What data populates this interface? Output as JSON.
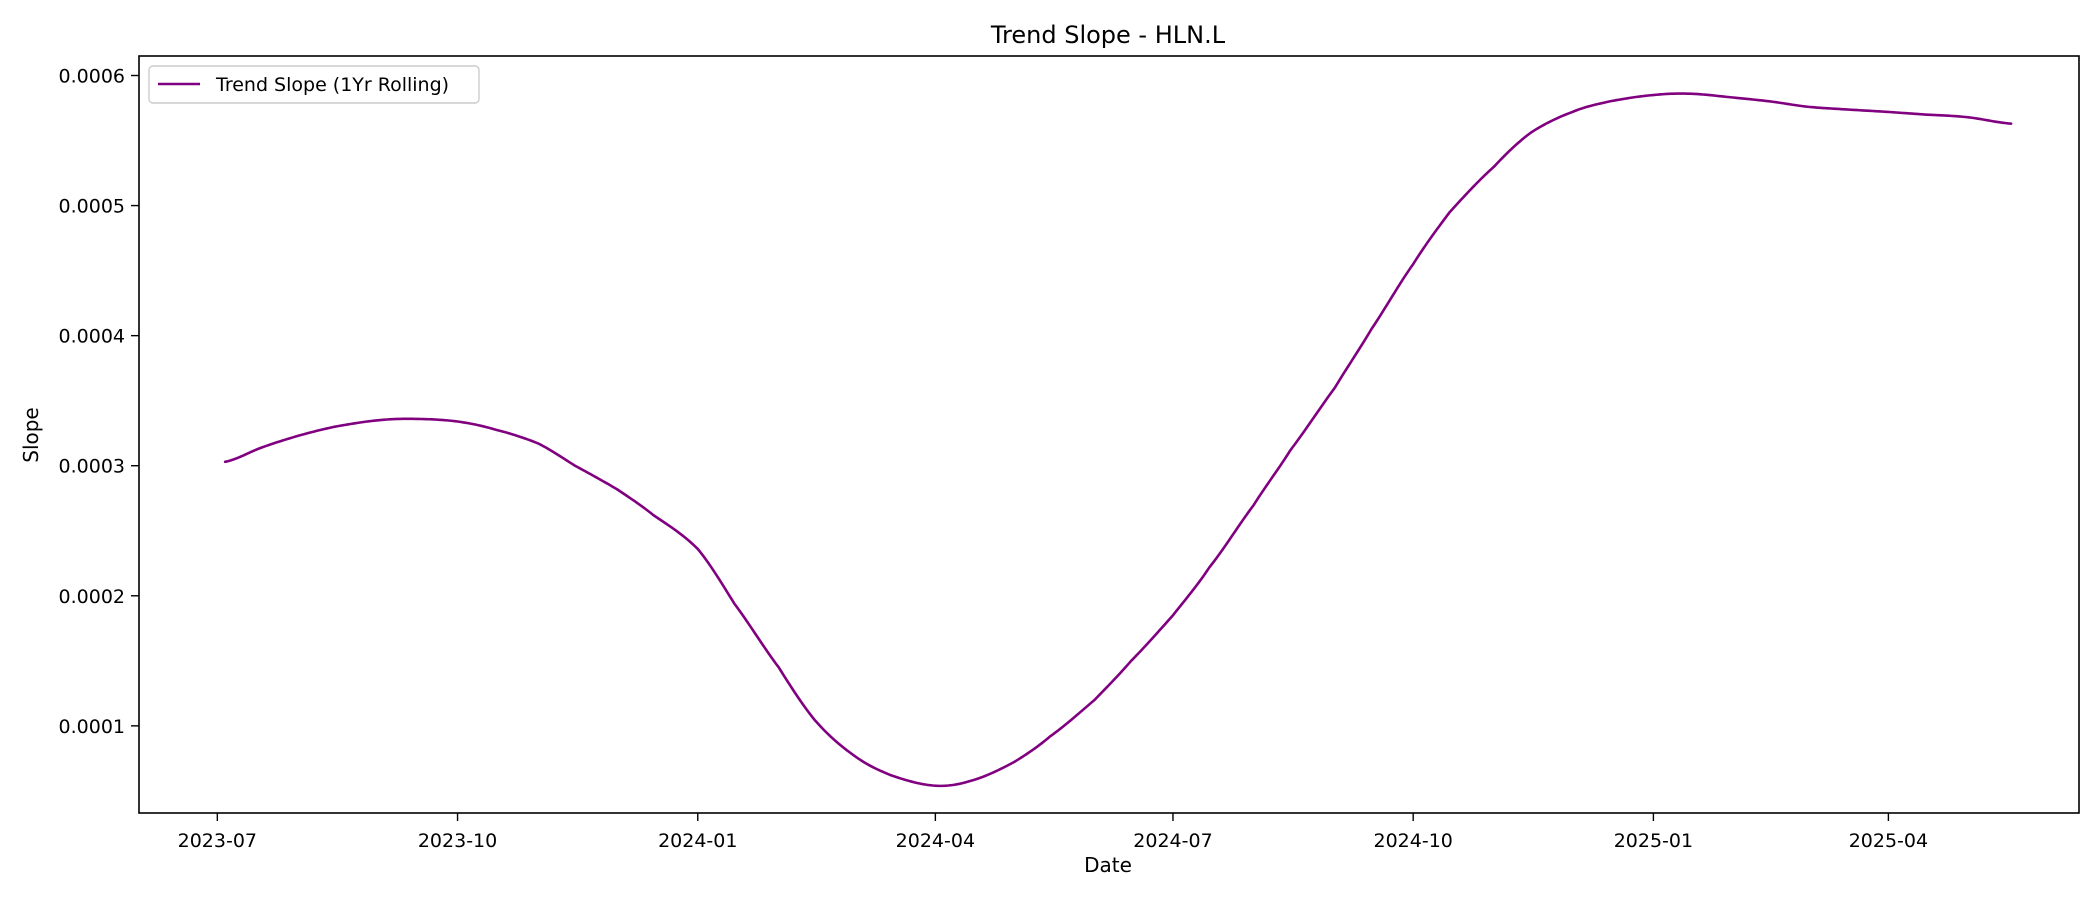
{
  "chart_data": {
    "type": "line",
    "title": "Trend Slope - HLN.L",
    "xlabel": "Date",
    "ylabel": "Slope",
    "x_ticks": [
      "2023-07",
      "2023-10",
      "2024-01",
      "2024-04",
      "2024-07",
      "2024-10",
      "2025-01",
      "2025-04"
    ],
    "y_ticks": [
      "0.0001",
      "0.0002",
      "0.0003",
      "0.0004",
      "0.0005",
      "0.0006"
    ],
    "xlim": [
      "2023-06-01",
      "2025-06-13"
    ],
    "ylim": [
      3.3e-05,
      0.000615
    ],
    "grid": false,
    "legend_position": "top-left",
    "series": [
      {
        "name": "Trend Slope (1Yr Rolling)",
        "color": "#800080",
        "x": [
          "2023-07-04",
          "2023-07-18",
          "2023-08-01",
          "2023-08-15",
          "2023-09-01",
          "2023-09-15",
          "2023-10-01",
          "2023-10-15",
          "2023-11-01",
          "2023-11-15",
          "2023-12-01",
          "2023-12-15",
          "2024-01-01",
          "2024-01-15",
          "2024-02-01",
          "2024-02-15",
          "2024-03-01",
          "2024-03-15",
          "2024-04-01",
          "2024-04-15",
          "2024-05-01",
          "2024-05-15",
          "2024-06-01",
          "2024-06-15",
          "2024-07-01",
          "2024-07-15",
          "2024-08-01",
          "2024-08-15",
          "2024-09-01",
          "2024-09-15",
          "2024-10-01",
          "2024-10-15",
          "2024-11-01",
          "2024-11-15",
          "2024-12-01",
          "2024-12-15",
          "2025-01-01",
          "2025-01-15",
          "2025-02-01",
          "2025-02-15",
          "2025-03-01",
          "2025-03-15",
          "2025-04-01",
          "2025-04-15",
          "2025-05-01",
          "2025-05-18"
        ],
        "y": [
          0.000303,
          0.000314,
          0.000323,
          0.00033,
          0.000335,
          0.000336,
          0.000334,
          0.000328,
          0.000317,
          0.0003,
          0.000282,
          0.000262,
          0.000236,
          0.000194,
          0.000145,
          0.000104,
          7.7e-05,
          6.2e-05,
          5.4e-05,
          5.8e-05,
          7.2e-05,
          9.2e-05,
          0.00012,
          0.00015,
          0.000185,
          0.000222,
          0.00027,
          0.000312,
          0.00036,
          0.000405,
          0.000455,
          0.000495,
          0.00053,
          0.000556,
          0.000572,
          0.00058,
          0.000585,
          0.000586,
          0.000583,
          0.00058,
          0.000576,
          0.000574,
          0.000572,
          0.00057,
          0.000568,
          0.000563
        ]
      }
    ]
  }
}
